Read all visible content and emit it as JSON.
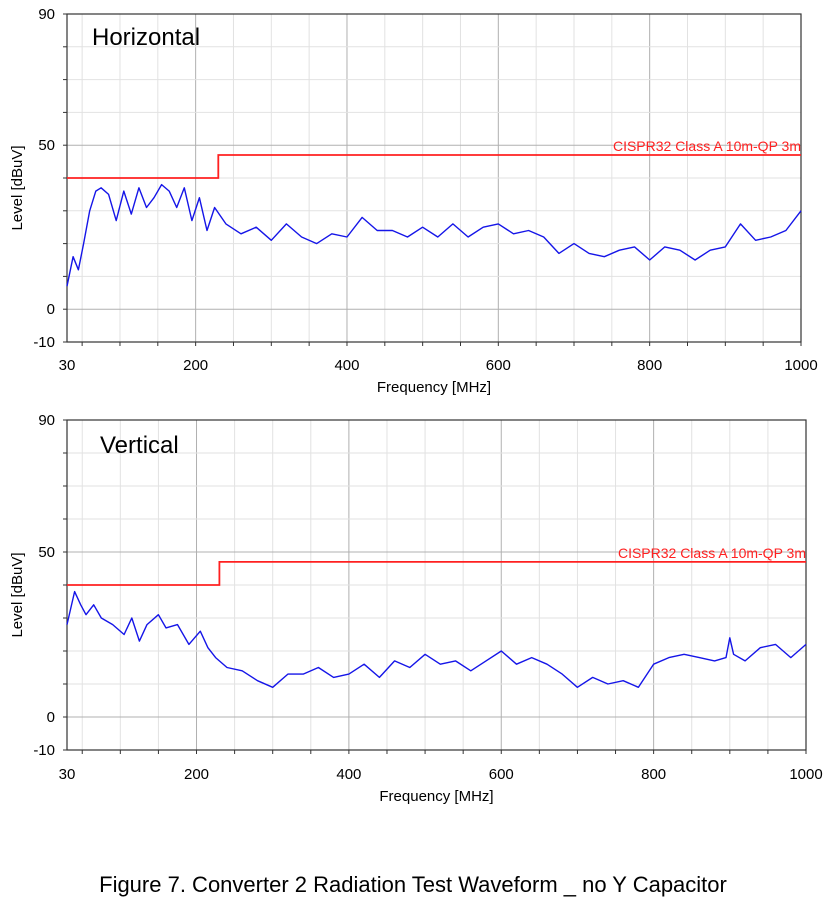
{
  "caption": "Figure 7. Converter 2 Radiation Test Waveform _ no Y Capacitor",
  "chart_data": [
    {
      "type": "line",
      "title": "Horizontal",
      "xlabel": "Frequency [MHz]",
      "ylabel": "Level [dBuV]",
      "xlim": [
        30,
        1000
      ],
      "ylim": [
        -10,
        90
      ],
      "xticks": [
        "30",
        "200",
        "400",
        "600",
        "800",
        "1000"
      ],
      "yticks": [
        "90",
        "50",
        "0",
        "-10"
      ],
      "grid": true,
      "limit_line": {
        "name": "CISPR32 Class A 10m-QP 3m",
        "color": "#ff2020",
        "points": [
          [
            30,
            40
          ],
          [
            230,
            40
          ],
          [
            230,
            47
          ],
          [
            1000,
            47
          ]
        ]
      },
      "series": [
        {
          "color": "#1515e8",
          "x": [
            30,
            38,
            45,
            52,
            60,
            68,
            75,
            85,
            95,
            105,
            115,
            125,
            135,
            145,
            155,
            165,
            175,
            185,
            195,
            205,
            215,
            225,
            240,
            260,
            280,
            300,
            320,
            340,
            360,
            380,
            400,
            420,
            440,
            460,
            480,
            500,
            520,
            540,
            560,
            580,
            600,
            620,
            640,
            660,
            680,
            700,
            720,
            740,
            760,
            780,
            800,
            820,
            840,
            860,
            880,
            900,
            920,
            940,
            960,
            980,
            1000
          ],
          "y": [
            7,
            16,
            12,
            20,
            30,
            36,
            37,
            35,
            27,
            36,
            29,
            37,
            31,
            34,
            38,
            36,
            31,
            37,
            27,
            34,
            24,
            31,
            26,
            23,
            25,
            21,
            26,
            22,
            20,
            23,
            22,
            28,
            24,
            24,
            22,
            25,
            22,
            26,
            22,
            25,
            26,
            23,
            24,
            22,
            17,
            20,
            17,
            16,
            18,
            19,
            15,
            19,
            18,
            15,
            18,
            19,
            26,
            21,
            22,
            24,
            30
          ]
        }
      ]
    },
    {
      "type": "line",
      "title": "Vertical",
      "xlabel": "Frequency [MHz]",
      "ylabel": "Level [dBuV]",
      "xlim": [
        30,
        1000
      ],
      "ylim": [
        -10,
        90
      ],
      "xticks": [
        "30",
        "200",
        "400",
        "600",
        "800",
        "1000"
      ],
      "yticks": [
        "90",
        "50",
        "0",
        "-10"
      ],
      "grid": true,
      "limit_line": {
        "name": "CISPR32 Class A 10m-QP 3m",
        "color": "#ff2020",
        "points": [
          [
            30,
            40
          ],
          [
            230,
            40
          ],
          [
            230,
            47
          ],
          [
            1000,
            47
          ]
        ]
      },
      "series": [
        {
          "color": "#1515e8",
          "x": [
            30,
            35,
            40,
            48,
            55,
            65,
            75,
            90,
            105,
            115,
            125,
            135,
            150,
            160,
            175,
            190,
            205,
            215,
            225,
            240,
            260,
            280,
            300,
            320,
            340,
            360,
            380,
            400,
            420,
            440,
            460,
            480,
            500,
            520,
            540,
            560,
            580,
            600,
            620,
            640,
            660,
            680,
            700,
            720,
            740,
            760,
            780,
            800,
            820,
            840,
            860,
            880,
            895,
            900,
            905,
            920,
            940,
            960,
            980,
            1000
          ],
          "y": [
            28,
            33,
            38,
            34,
            31,
            34,
            30,
            28,
            25,
            30,
            23,
            28,
            31,
            27,
            28,
            22,
            26,
            21,
            18,
            15,
            14,
            11,
            9,
            13,
            13,
            15,
            12,
            13,
            16,
            12,
            17,
            15,
            19,
            16,
            17,
            14,
            17,
            20,
            16,
            18,
            16,
            13,
            9,
            12,
            10,
            11,
            9,
            16,
            18,
            19,
            18,
            17,
            18,
            24,
            19,
            17,
            21,
            22,
            18,
            22
          ]
        }
      ]
    }
  ]
}
